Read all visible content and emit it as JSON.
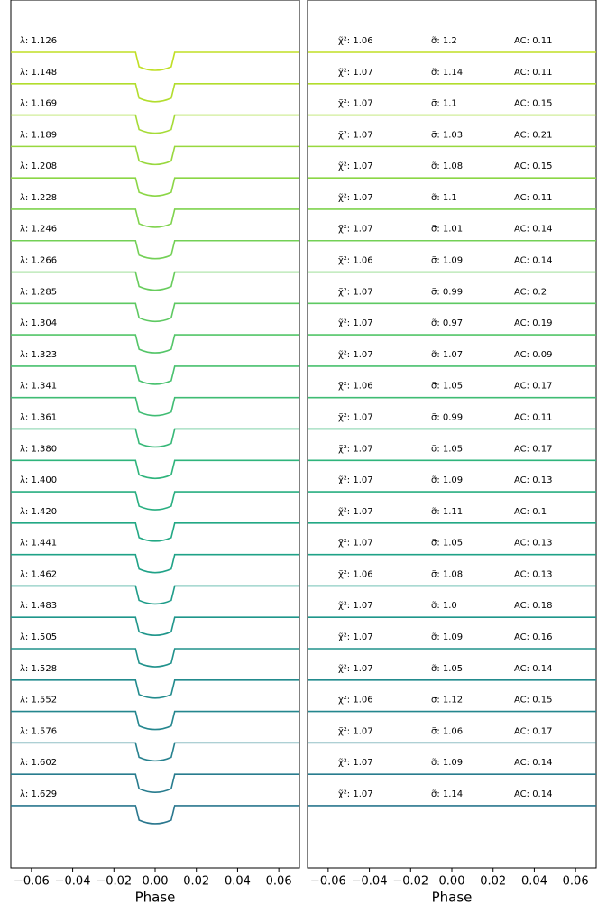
{
  "chart_data": [
    {
      "type": "lightcurve",
      "xlabel": "Phase",
      "xlim": [
        -0.07,
        0.07
      ],
      "xticks": [
        {
          "value": -0.06,
          "label": "−0.06"
        },
        {
          "value": -0.04,
          "label": "−0.04"
        },
        {
          "value": -0.02,
          "label": "−0.02"
        },
        {
          "value": 0,
          "label": "0.00"
        },
        {
          "value": 0.02,
          "label": "0.02"
        },
        {
          "value": 0.04,
          "label": "0.04"
        },
        {
          "value": 0.06,
          "label": "0.06"
        }
      ],
      "labels": [
        "λ: 1.126",
        "λ: 1.148",
        "λ: 1.169",
        "λ: 1.189",
        "λ: 1.208",
        "λ: 1.228",
        "λ: 1.246",
        "λ: 1.266",
        "λ: 1.285",
        "λ: 1.304",
        "λ: 1.323",
        "λ: 1.341",
        "λ: 1.361",
        "λ: 1.380",
        "λ: 1.400",
        "λ: 1.420",
        "λ: 1.441",
        "λ: 1.462",
        "λ: 1.483",
        "λ: 1.505",
        "λ: 1.528",
        "λ: 1.552",
        "λ: 1.576",
        "λ: 1.602",
        "λ: 1.629"
      ],
      "colors": [
        "#c0df25",
        "#b2dd2d",
        "#a5db36",
        "#98d83e",
        "#8bd646",
        "#7fd34e",
        "#73d056",
        "#67cc5c",
        "#5ec962",
        "#53c568",
        "#48c16e",
        "#3fbc73",
        "#37b878",
        "#2fb47c",
        "#28ae80",
        "#22a884",
        "#1fa287",
        "#1e9c89",
        "#1f968b",
        "#20928c",
        "#228b8d",
        "#24868e",
        "#26818e",
        "#287c8e",
        "#2a778e"
      ]
    },
    {
      "type": "residuals",
      "xlabel": "Phase",
      "xlim": [
        -0.07,
        0.07
      ],
      "xticks": [
        {
          "value": -0.06,
          "label": "−0.06"
        },
        {
          "value": -0.04,
          "label": "−0.04"
        },
        {
          "value": -0.02,
          "label": "−0.02"
        },
        {
          "value": 0,
          "label": "0.00"
        },
        {
          "value": 0.02,
          "label": "0.02"
        },
        {
          "value": 0.04,
          "label": "0.04"
        },
        {
          "value": 0.06,
          "label": "0.06"
        }
      ],
      "stats": [
        [
          "χ̃²: 1.06",
          "σ̃: 1.2",
          "AC: 0.11"
        ],
        [
          "χ̃²: 1.07",
          "σ̃: 1.14",
          "AC: 0.11"
        ],
        [
          "χ̃²: 1.07",
          "σ̃: 1.1",
          "AC: 0.15"
        ],
        [
          "χ̃²: 1.07",
          "σ̃: 1.03",
          "AC: 0.21"
        ],
        [
          "χ̃²: 1.07",
          "σ̃: 1.08",
          "AC: 0.15"
        ],
        [
          "χ̃²: 1.07",
          "σ̃: 1.1",
          "AC: 0.11"
        ],
        [
          "χ̃²: 1.07",
          "σ̃: 1.01",
          "AC: 0.14"
        ],
        [
          "χ̃²: 1.06",
          "σ̃: 1.09",
          "AC: 0.14"
        ],
        [
          "χ̃²: 1.07",
          "σ̃: 0.99",
          "AC: 0.2"
        ],
        [
          "χ̃²: 1.07",
          "σ̃: 0.97",
          "AC: 0.19"
        ],
        [
          "χ̃²: 1.07",
          "σ̃: 1.07",
          "AC: 0.09"
        ],
        [
          "χ̃²: 1.06",
          "σ̃: 1.05",
          "AC: 0.17"
        ],
        [
          "χ̃²: 1.07",
          "σ̃: 0.99",
          "AC: 0.11"
        ],
        [
          "χ̃²: 1.07",
          "σ̃: 1.05",
          "AC: 0.17"
        ],
        [
          "χ̃²: 1.07",
          "σ̃: 1.09",
          "AC: 0.13"
        ],
        [
          "χ̃²: 1.07",
          "σ̃: 1.11",
          "AC: 0.1"
        ],
        [
          "χ̃²: 1.07",
          "σ̃: 1.05",
          "AC: 0.13"
        ],
        [
          "χ̃²: 1.06",
          "σ̃: 1.08",
          "AC: 0.13"
        ],
        [
          "χ̃²: 1.07",
          "σ̃: 1.0",
          "AC: 0.18"
        ],
        [
          "χ̃²: 1.07",
          "σ̃: 1.09",
          "AC: 0.16"
        ],
        [
          "χ̃²: 1.07",
          "σ̃: 1.05",
          "AC: 0.14"
        ],
        [
          "χ̃²: 1.06",
          "σ̃: 1.12",
          "AC: 0.15"
        ],
        [
          "χ̃²: 1.07",
          "σ̃: 1.06",
          "AC: 0.17"
        ],
        [
          "χ̃²: 1.07",
          "σ̃: 1.09",
          "AC: 0.14"
        ],
        [
          "χ̃²: 1.07",
          "σ̃: 1.14",
          "AC: 0.14"
        ]
      ]
    }
  ]
}
